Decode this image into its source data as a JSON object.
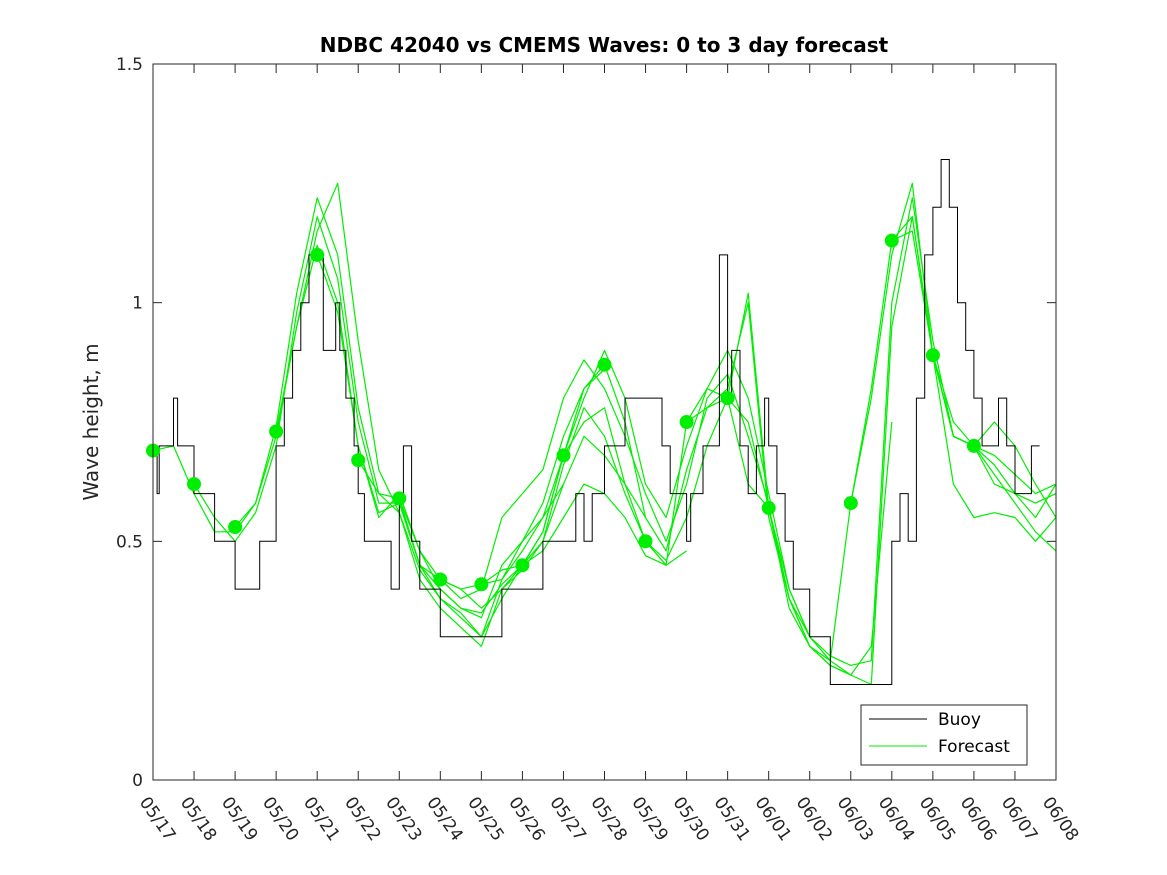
{
  "chart_data": {
    "type": "line",
    "title": "NDBC 42040 vs CMEMS Waves: 0 to 3 day forecast",
    "xlabel": "",
    "ylabel": "Wave height, m",
    "ylim": [
      0,
      1.5
    ],
    "yticks": [
      0,
      0.5,
      1,
      1.5
    ],
    "ytick_labels": [
      "0",
      "0.5",
      "1",
      "1.5"
    ],
    "xlim_days": [
      0,
      22
    ],
    "xtick_labels": [
      "05/17",
      "05/18",
      "05/19",
      "05/20",
      "05/21",
      "05/22",
      "05/23",
      "05/24",
      "05/25",
      "05/26",
      "05/27",
      "05/28",
      "05/29",
      "05/30",
      "05/31",
      "06/01",
      "06/02",
      "06/03",
      "06/04",
      "06/05",
      "06/06",
      "06/07",
      "06/08"
    ],
    "grid": false,
    "legend_position": "bottom-right",
    "colors": {
      "buoy": "#000000",
      "forecast": "#00ee00",
      "axes": "#262626"
    },
    "series": [
      {
        "name": "Buoy",
        "step": true,
        "x": [
          0,
          0.1,
          0.15,
          0.25,
          0.5,
          0.6,
          0.9,
          1.0,
          1.5,
          1.9,
          2.0,
          2.1,
          2.3,
          2.6,
          3.0,
          3.2,
          3.4,
          3.6,
          3.8,
          4.0,
          4.15,
          4.3,
          4.45,
          4.55,
          4.7,
          4.9,
          5.0,
          5.05,
          5.15,
          5.3,
          5.6,
          5.8,
          6.0,
          6.1,
          6.3,
          6.5,
          7.0,
          7.5,
          8.0,
          8.5,
          9.0,
          9.5,
          10.0,
          10.3,
          10.5,
          10.7,
          11.0,
          11.2,
          11.5,
          11.7,
          11.8,
          12.0,
          12.2,
          12.4,
          12.6,
          12.9,
          13.0,
          13.1,
          13.4,
          13.6,
          13.8,
          14.0,
          14.1,
          14.3,
          14.5,
          14.7,
          14.9,
          15.0,
          15.2,
          15.4,
          15.6,
          16.0,
          16.5,
          17.0,
          17.5,
          17.8,
          18.0,
          18.2,
          18.4,
          18.6,
          18.8,
          19.0,
          19.2,
          19.4,
          19.6,
          19.8,
          20.0,
          20.2,
          20.4,
          20.6,
          20.8,
          21.0,
          21.2,
          21.4
        ],
        "values": [
          0.69,
          0.6,
          0.7,
          0.7,
          0.8,
          0.7,
          0.7,
          0.6,
          0.5,
          0.5,
          0.4,
          0.4,
          0.4,
          0.5,
          0.7,
          0.8,
          0.9,
          1.0,
          1.1,
          1.1,
          0.9,
          0.9,
          1.0,
          0.9,
          0.8,
          0.7,
          0.6,
          0.6,
          0.5,
          0.5,
          0.5,
          0.4,
          0.6,
          0.7,
          0.5,
          0.4,
          0.3,
          0.3,
          0.3,
          0.4,
          0.4,
          0.5,
          0.5,
          0.6,
          0.5,
          0.6,
          0.7,
          0.7,
          0.8,
          0.8,
          0.8,
          0.8,
          0.8,
          0.7,
          0.6,
          0.6,
          0.5,
          0.6,
          0.7,
          0.7,
          1.1,
          0.8,
          0.9,
          0.7,
          0.6,
          0.7,
          0.8,
          0.7,
          0.6,
          0.5,
          0.4,
          0.3,
          0.2,
          0.2,
          0.2,
          0.2,
          0.5,
          0.6,
          0.5,
          0.8,
          1.1,
          1.2,
          1.3,
          1.2,
          1.0,
          0.9,
          0.8,
          0.7,
          0.7,
          0.8,
          0.7,
          0.6,
          0.6,
          0.7
        ]
      },
      {
        "name": "Forecast",
        "markers": {
          "x": [
            0,
            1,
            2,
            3,
            4,
            5,
            6,
            7,
            8,
            9,
            10,
            11,
            12,
            13,
            14,
            15,
            17,
            18,
            19,
            20
          ],
          "values": [
            0.69,
            0.62,
            0.53,
            0.73,
            1.1,
            0.67,
            0.59,
            0.42,
            0.41,
            0.45,
            0.68,
            0.87,
            0.5,
            0.75,
            0.8,
            0.57,
            0.58,
            1.13,
            0.89,
            0.7
          ]
        },
        "runs": [
          {
            "x": [
              0,
              0.5,
              1,
              1.5,
              2,
              2.5,
              3,
              3.5,
              4,
              4.5,
              5,
              5.5,
              6,
              6.5,
              7,
              7.5,
              8,
              8.5,
              9
            ],
            "values": [
              0.69,
              0.7,
              0.6,
              0.52,
              0.52,
              0.58,
              0.72,
              0.95,
              1.12,
              1.0,
              0.7,
              0.55,
              0.6,
              0.48,
              0.4,
              0.36,
              0.35,
              0.41,
              0.45
            ]
          },
          {
            "x": [
              1,
              1.5,
              2,
              2.5,
              3,
              3.5,
              4,
              4.5,
              5,
              5.5,
              6,
              6.5,
              7,
              7.5,
              8,
              8.5,
              9,
              9.5,
              10
            ],
            "values": [
              0.62,
              0.55,
              0.5,
              0.56,
              0.7,
              0.98,
              1.18,
              1.05,
              0.75,
              0.58,
              0.58,
              0.45,
              0.4,
              0.36,
              0.34,
              0.45,
              0.5,
              0.55,
              0.62
            ]
          },
          {
            "x": [
              2,
              2.5,
              3,
              3.5,
              4,
              4.5,
              5,
              5.5,
              6,
              6.5,
              7,
              7.5,
              8,
              8.5,
              9,
              9.5,
              10,
              10.5,
              11
            ],
            "values": [
              0.53,
              0.58,
              0.74,
              1.02,
              1.22,
              1.1,
              0.78,
              0.6,
              0.56,
              0.44,
              0.38,
              0.34,
              0.3,
              0.42,
              0.5,
              0.58,
              0.72,
              0.82,
              0.86
            ]
          },
          {
            "x": [
              3,
              3.5,
              4,
              4.5,
              5,
              5.5,
              6,
              6.5,
              7,
              7.5,
              8,
              8.5,
              9,
              9.5,
              10,
              10.5,
              11,
              11.5,
              12
            ],
            "values": [
              0.73,
              0.95,
              1.15,
              1.25,
              0.92,
              0.65,
              0.56,
              0.42,
              0.36,
              0.32,
              0.28,
              0.4,
              0.45,
              0.5,
              0.62,
              0.72,
              0.68,
              0.62,
              0.55
            ]
          },
          {
            "x": [
              4,
              4.5,
              5,
              5.5,
              6,
              6.5,
              7,
              7.5,
              8,
              8.5,
              9,
              9.5,
              10,
              10.5,
              11,
              11.5,
              12,
              12.5,
              13
            ],
            "values": [
              1.1,
              0.98,
              0.7,
              0.56,
              0.58,
              0.45,
              0.38,
              0.35,
              0.3,
              0.38,
              0.45,
              0.48,
              0.55,
              0.62,
              0.6,
              0.55,
              0.47,
              0.45,
              0.48
            ]
          },
          {
            "x": [
              5,
              5.5,
              6,
              6.5,
              7,
              7.5,
              8,
              8.5,
              9,
              9.5,
              10,
              10.5,
              11,
              11.5,
              12,
              12.5,
              13,
              13.5,
              14
            ],
            "values": [
              0.67,
              0.6,
              0.59,
              0.48,
              0.42,
              0.4,
              0.36,
              0.4,
              0.44,
              0.5,
              0.66,
              0.78,
              0.72,
              0.6,
              0.5,
              0.46,
              0.55,
              0.7,
              0.8
            ]
          },
          {
            "x": [
              6,
              6.5,
              7,
              7.5,
              8,
              8.5,
              9,
              9.5,
              10,
              10.5,
              11,
              11.5,
              12,
              12.5,
              13,
              13.5,
              14,
              14.5,
              15
            ],
            "values": [
              0.59,
              0.45,
              0.42,
              0.38,
              0.4,
              0.55,
              0.6,
              0.65,
              0.8,
              0.88,
              0.82,
              0.72,
              0.6,
              0.5,
              0.62,
              0.8,
              0.85,
              0.72,
              0.58
            ]
          },
          {
            "x": [
              7,
              7.5,
              8,
              8.5,
              9,
              9.5,
              10,
              10.5,
              11,
              11.5,
              12,
              12.5,
              13,
              13.5,
              14,
              14.5,
              15,
              15.5,
              16
            ],
            "values": [
              0.42,
              0.4,
              0.41,
              0.42,
              0.48,
              0.55,
              0.68,
              0.8,
              0.9,
              0.8,
              0.62,
              0.55,
              0.7,
              0.82,
              0.9,
              0.8,
              0.6,
              0.4,
              0.3
            ]
          },
          {
            "x": [
              8,
              8.5,
              9,
              9.5,
              10,
              10.5,
              11,
              11.5,
              12,
              12.5,
              13,
              13.5,
              14,
              14.5,
              15,
              15.5,
              16,
              16.5,
              17
            ],
            "values": [
              0.41,
              0.44,
              0.45,
              0.52,
              0.68,
              0.82,
              0.87,
              0.75,
              0.55,
              0.48,
              0.65,
              0.78,
              0.82,
              1.0,
              0.55,
              0.38,
              0.28,
              0.24,
              0.22
            ]
          },
          {
            "x": [
              9,
              9.5,
              10,
              10.5,
              11,
              11.5,
              12,
              12.5,
              13,
              13.5,
              14,
              14.5,
              15,
              15.5,
              16,
              16.5,
              17,
              17.5,
              18
            ],
            "values": [
              0.45,
              0.52,
              0.68,
              0.75,
              0.78,
              0.62,
              0.5,
              0.45,
              0.75,
              0.82,
              0.8,
              1.02,
              0.57,
              0.38,
              0.3,
              0.25,
              0.22,
              0.28,
              0.75
            ]
          },
          {
            "x": [
              13,
              13.5,
              14,
              14.5,
              15,
              15.5,
              16,
              16.5,
              17,
              17.5,
              18,
              18.5,
              19,
              19.5,
              20,
              20.5,
              21,
              21.5,
              22
            ],
            "values": [
              0.75,
              0.78,
              0.8,
              0.75,
              0.57,
              0.36,
              0.28,
              0.24,
              0.22,
              0.2,
              0.95,
              1.18,
              0.89,
              0.72,
              0.7,
              0.64,
              0.58,
              0.52,
              0.48
            ]
          },
          {
            "x": [
              14,
              14.5,
              15,
              15.5,
              16,
              16.5,
              17,
              17.5,
              18,
              18.5,
              19,
              19.5,
              20,
              20.5,
              21,
              21.5,
              22
            ],
            "values": [
              0.8,
              0.62,
              0.57,
              0.4,
              0.3,
              0.26,
              0.24,
              0.25,
              1.0,
              1.22,
              0.92,
              0.72,
              0.7,
              0.62,
              0.6,
              0.55,
              0.62
            ]
          },
          {
            "x": [
              15,
              15.5,
              16,
              16.5,
              17,
              17.5,
              18,
              18.5,
              19,
              19.5,
              20,
              20.5,
              21,
              21.5,
              22
            ],
            "values": [
              0.57,
              0.38,
              0.28,
              0.25,
              0.58,
              0.8,
              1.1,
              1.25,
              0.89,
              0.62,
              0.55,
              0.56,
              0.55,
              0.5,
              0.55
            ]
          },
          {
            "x": [
              17,
              17.5,
              18,
              18.5,
              19,
              19.5,
              20,
              20.5,
              21,
              21.5,
              22
            ],
            "values": [
              0.58,
              0.82,
              1.13,
              1.18,
              0.89,
              0.72,
              0.7,
              0.66,
              0.6,
              0.58,
              0.6
            ]
          },
          {
            "x": [
              18,
              18.5,
              19,
              19.5,
              20,
              20.5,
              21,
              21.5,
              22
            ],
            "values": [
              1.13,
              1.15,
              0.89,
              0.72,
              0.7,
              0.68,
              0.64,
              0.6,
              0.62
            ]
          },
          {
            "x": [
              19,
              19.5,
              20,
              20.5,
              21,
              21.5,
              22
            ],
            "values": [
              0.89,
              0.75,
              0.7,
              0.75,
              0.7,
              0.62,
              0.55
            ]
          }
        ]
      }
    ]
  }
}
